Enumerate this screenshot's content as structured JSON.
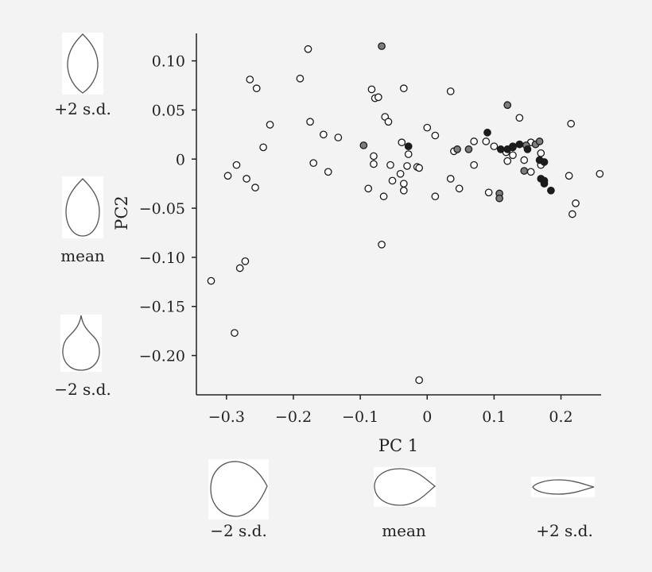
{
  "chart_data": {
    "type": "scatter",
    "xlabel": "PC 1",
    "ylabel": "PC2",
    "xlim": [
      -0.345,
      0.26
    ],
    "ylim": [
      -0.24,
      0.128
    ],
    "x_ticks": [
      -0.3,
      -0.2,
      -0.1,
      0,
      0.1,
      0.2
    ],
    "x_tick_labels": [
      "−0.3",
      "−0.2",
      "−0.1",
      "0",
      "0.1",
      "0.2"
    ],
    "y_ticks": [
      0.1,
      0.05,
      0,
      -0.05,
      -0.1,
      -0.15,
      -0.2
    ],
    "y_tick_labels": [
      "0.10",
      "0.05",
      "0",
      "−0.05",
      "−0.10",
      "−0.15",
      "−0.20"
    ],
    "grid": false,
    "series": [
      {
        "color": "#ffffff",
        "points": [
          [
            -0.178,
            0.112
          ],
          [
            -0.265,
            0.081
          ],
          [
            -0.255,
            0.072
          ],
          [
            -0.19,
            0.082
          ],
          [
            -0.083,
            0.071
          ],
          [
            -0.035,
            0.072
          ],
          [
            0.035,
            0.069
          ],
          [
            -0.078,
            0.062
          ],
          [
            -0.073,
            0.063
          ],
          [
            -0.063,
            0.043
          ],
          [
            -0.058,
            0.038
          ],
          [
            0.138,
            0.042
          ],
          [
            -0.235,
            0.035
          ],
          [
            -0.175,
            0.038
          ],
          [
            -0.155,
            0.025
          ],
          [
            -0.133,
            0.022
          ],
          [
            -0.245,
            0.012
          ],
          [
            0.0,
            0.032
          ],
          [
            0.012,
            0.024
          ],
          [
            -0.038,
            0.017
          ],
          [
            -0.028,
            0.005
          ],
          [
            0.04,
            0.008
          ],
          [
            0.07,
            0.018
          ],
          [
            0.088,
            0.018
          ],
          [
            0.1,
            0.013
          ],
          [
            0.118,
            0.007
          ],
          [
            0.128,
            0.004
          ],
          [
            0.155,
            0.017
          ],
          [
            0.17,
            0.006
          ],
          [
            0.215,
            0.036
          ],
          [
            -0.08,
            0.003
          ],
          [
            -0.08,
            -0.005
          ],
          [
            -0.055,
            -0.006
          ],
          [
            -0.03,
            -0.007
          ],
          [
            -0.015,
            -0.008
          ],
          [
            -0.012,
            -0.009
          ],
          [
            0.07,
            -0.006
          ],
          [
            0.12,
            -0.002
          ],
          [
            0.145,
            -0.001
          ],
          [
            0.155,
            -0.013
          ],
          [
            0.17,
            -0.006
          ],
          [
            -0.285,
            -0.006
          ],
          [
            -0.298,
            -0.017
          ],
          [
            -0.27,
            -0.02
          ],
          [
            -0.257,
            -0.029
          ],
          [
            -0.17,
            -0.004
          ],
          [
            -0.148,
            -0.013
          ],
          [
            -0.04,
            -0.015
          ],
          [
            -0.052,
            -0.022
          ],
          [
            -0.035,
            -0.025
          ],
          [
            -0.035,
            -0.032
          ],
          [
            -0.088,
            -0.03
          ],
          [
            -0.065,
            -0.038
          ],
          [
            0.035,
            -0.02
          ],
          [
            0.048,
            -0.03
          ],
          [
            0.012,
            -0.038
          ],
          [
            0.092,
            -0.034
          ],
          [
            0.212,
            -0.017
          ],
          [
            0.258,
            -0.015
          ],
          [
            0.222,
            -0.045
          ],
          [
            0.217,
            -0.056
          ],
          [
            -0.068,
            -0.087
          ],
          [
            -0.272,
            -0.104
          ],
          [
            -0.28,
            -0.111
          ],
          [
            -0.323,
            -0.124
          ],
          [
            -0.288,
            -0.177
          ],
          [
            -0.012,
            -0.225
          ]
        ]
      },
      {
        "color": "#7d7d7d",
        "points": [
          [
            -0.068,
            0.115
          ],
          [
            -0.095,
            0.014
          ],
          [
            0.045,
            0.01
          ],
          [
            0.062,
            0.01
          ],
          [
            0.12,
            0.055
          ],
          [
            0.128,
            0.013
          ],
          [
            0.148,
            0.014
          ],
          [
            0.162,
            0.015
          ],
          [
            0.168,
            0.018
          ],
          [
            0.145,
            -0.012
          ],
          [
            0.108,
            -0.035
          ],
          [
            0.108,
            -0.04
          ]
        ]
      },
      {
        "color": "#1c1c1c",
        "points": [
          [
            0.09,
            0.027
          ],
          [
            -0.028,
            0.013
          ],
          [
            0.11,
            0.01
          ],
          [
            0.12,
            0.01
          ],
          [
            0.128,
            0.012
          ],
          [
            0.138,
            0.015
          ],
          [
            0.15,
            0.01
          ],
          [
            0.168,
            -0.001
          ],
          [
            0.175,
            -0.003
          ],
          [
            0.17,
            -0.02
          ],
          [
            0.175,
            -0.022
          ],
          [
            0.175,
            -0.025
          ],
          [
            0.185,
            -0.032
          ]
        ]
      }
    ]
  },
  "shapes": {
    "left_top_label": "+2 s.d.",
    "left_mid_label": "mean",
    "left_bottom_label": "−2 s.d.",
    "bottom_left_label": "−2 s.d.",
    "bottom_mid_label": "mean",
    "bottom_right_label": "+2 s.d."
  }
}
